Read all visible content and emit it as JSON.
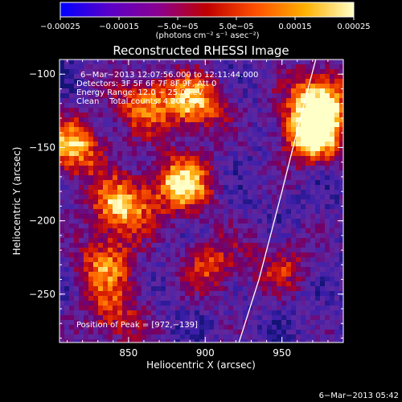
{
  "chart_data": {
    "type": "heatmap",
    "title": "Reconstructed RHESSI Image",
    "xlabel": "Heliocentric X (arcsec)",
    "ylabel": "Heliocentric Y (arcsec)",
    "xlim": [
      805,
      990
    ],
    "ylim": [
      -283,
      -90
    ],
    "x_ticks": [
      850,
      900,
      950
    ],
    "y_ticks": [
      -100,
      -150,
      -200,
      -250
    ],
    "x_tick_labels": [
      "850",
      "900",
      "950"
    ],
    "y_tick_labels": [
      "−100",
      "−150",
      "−200",
      "−250"
    ],
    "colorbar": {
      "range": [
        -0.00025,
        0.00025
      ],
      "tick_labels": [
        "−0.00025",
        "−0.00015",
        "−5.0e−05",
        "5.0e−05",
        "0.00015",
        "0.00025"
      ],
      "unit_label": "(photons cm⁻² s⁻¹ asec⁻²)",
      "colors": [
        "#0000ff",
        "#5a00c8",
        "#8a0090",
        "#c00000",
        "#ff5000",
        "#ffb000",
        "#ffffc8"
      ]
    },
    "annotations": {
      "time": "6−Mar−2013 12:07:56.000 to 12:11:44.000",
      "detectors": "Detectors: 3F 5F 6F 7F 8F 9F, Att 0",
      "energy": "Energy Range: 12.0 − 25.0 keV",
      "clean": "Clean    Total counts: 4.20E+03",
      "peak": "Position of Peak = [972,−139]"
    },
    "peak": [
      972,
      -139
    ],
    "sources": [
      {
        "x": 970,
        "y": -140,
        "amp": 1.0
      },
      {
        "x": 975,
        "y": -115,
        "amp": 0.75
      },
      {
        "x": 815,
        "y": -150,
        "amp": 0.7
      },
      {
        "x": 845,
        "y": -190,
        "amp": 0.75
      },
      {
        "x": 885,
        "y": -175,
        "amp": 0.8
      },
      {
        "x": 893,
        "y": -120,
        "amp": 0.7
      },
      {
        "x": 860,
        "y": -120,
        "amp": 0.55
      },
      {
        "x": 835,
        "y": -230,
        "amp": 0.55
      },
      {
        "x": 905,
        "y": -230,
        "amp": 0.45
      },
      {
        "x": 840,
        "y": -265,
        "amp": 0.45
      },
      {
        "x": 950,
        "y": -230,
        "amp": 0.35
      }
    ],
    "limb_curve": {
      "x": [
        922,
        935,
        950,
        962,
        972
      ],
      "y": [
        -283,
        -240,
        -180,
        -130,
        -90
      ]
    },
    "timestamp": "6−Mar−2013 05:42"
  }
}
